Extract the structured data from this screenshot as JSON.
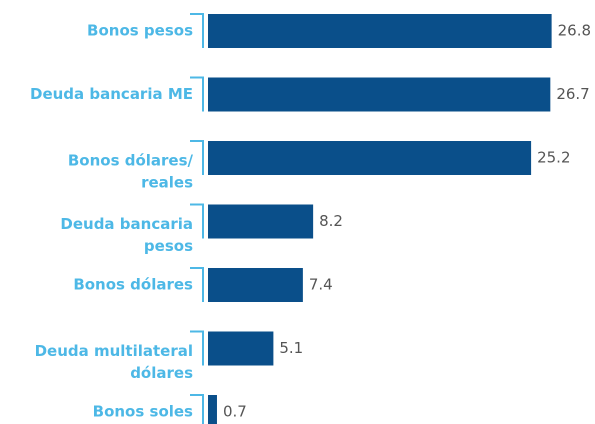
{
  "chart_data": {
    "type": "bar",
    "orientation": "horizontal",
    "categories": [
      [
        "Bonos pesos"
      ],
      [
        "Deuda bancaria ME"
      ],
      [
        "Bonos dólares/",
        "reales"
      ],
      [
        "Deuda bancaria",
        "pesos"
      ],
      [
        "Bonos dólares"
      ],
      [
        "Deuda multilateral",
        "dólares"
      ],
      [
        "Bonos soles"
      ]
    ],
    "values": [
      26.8,
      26.7,
      25.2,
      8.2,
      7.4,
      5.1,
      0.7
    ],
    "color": "#0a4f8a",
    "label_color": "#4db8e6",
    "xlim": [
      0,
      28
    ]
  }
}
